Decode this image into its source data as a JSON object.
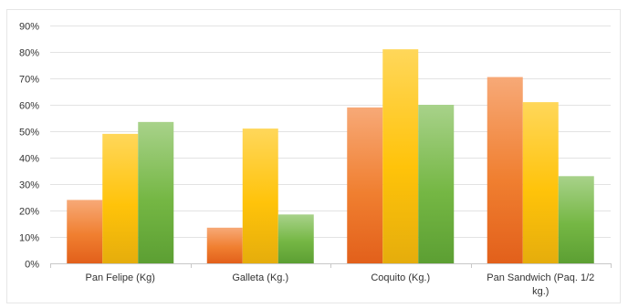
{
  "chart_data": {
    "type": "bar",
    "title": "",
    "xlabel": "",
    "ylabel": "",
    "categories": [
      [
        "Pan Felipe (Kg)"
      ],
      [
        "Galleta (Kg.)"
      ],
      [
        "Coquito (Kg.)"
      ],
      [
        "Pan Sandwich (Paq. 1/2",
        "kg.)"
      ]
    ],
    "series": [
      {
        "values": [
          24,
          13.5,
          59,
          70.5
        ],
        "color_top": "#f7a977",
        "color_mid": "#f07f30",
        "color_bottom": "#e2601b"
      },
      {
        "values": [
          49,
          51,
          81,
          61
        ],
        "color_top": "#ffd75a",
        "color_mid": "#ffc30a",
        "color_bottom": "#e5ad0c"
      },
      {
        "values": [
          53.5,
          18.5,
          60,
          33
        ],
        "color_top": "#a8d28a",
        "color_mid": "#75b744",
        "color_bottom": "#5c9f33"
      }
    ],
    "yticks": [
      "0%",
      "10%",
      "20%",
      "30%",
      "40%",
      "50%",
      "60%",
      "70%",
      "80%",
      "90%"
    ],
    "ylim": [
      0,
      90
    ],
    "grid": true,
    "legend": "none"
  }
}
